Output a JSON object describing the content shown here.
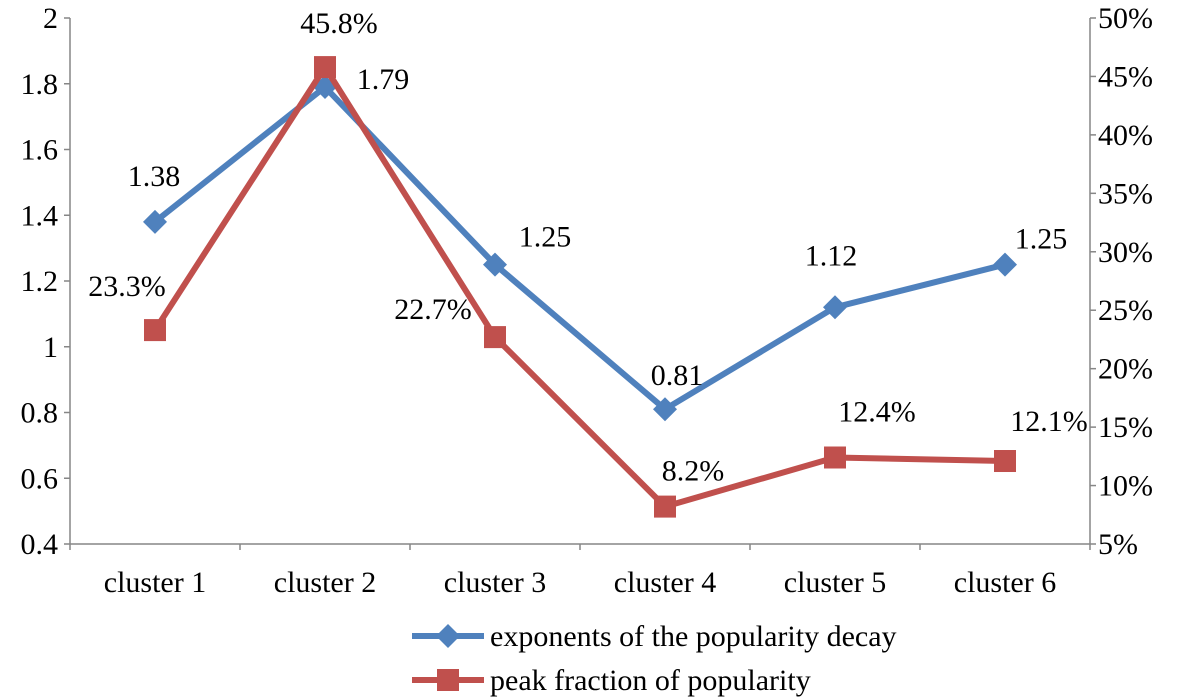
{
  "chart_data": {
    "type": "line",
    "categories": [
      "cluster 1",
      "cluster 2",
      "cluster 3",
      "cluster 4",
      "cluster 5",
      "cluster 6"
    ],
    "series": [
      {
        "name": "exponents of the popularity decay",
        "axis": "left",
        "marker": "diamond",
        "color": "#4F81BD",
        "values": [
          1.38,
          1.79,
          1.25,
          0.81,
          1.12,
          1.25
        ],
        "labels": [
          "1.38",
          "1.79",
          "1.25",
          "0.81",
          "1.12",
          "1.25"
        ]
      },
      {
        "name": "peak fraction of popularity",
        "axis": "right",
        "marker": "square",
        "color": "#C0504D",
        "values": [
          23.3,
          45.8,
          22.7,
          8.2,
          12.4,
          12.1
        ],
        "labels": [
          "23.3%",
          "45.8%",
          "22.7%",
          "8.2%",
          "12.4%",
          "12.1%"
        ]
      }
    ],
    "y_left": {
      "ylim": [
        0.4,
        2
      ],
      "ticks": [
        "0.4",
        "0.6",
        "0.8",
        "1",
        "1.2",
        "1.4",
        "1.6",
        "1.8",
        "2"
      ]
    },
    "y_right": {
      "ylim": [
        5,
        50
      ],
      "ticks": [
        "5%",
        "10%",
        "15%",
        "20%",
        "25%",
        "30%",
        "35%",
        "40%",
        "45%",
        "50%"
      ]
    },
    "grid": false,
    "legend_position": "bottom-right",
    "title": "",
    "xlabel": "",
    "ylabel": ""
  }
}
